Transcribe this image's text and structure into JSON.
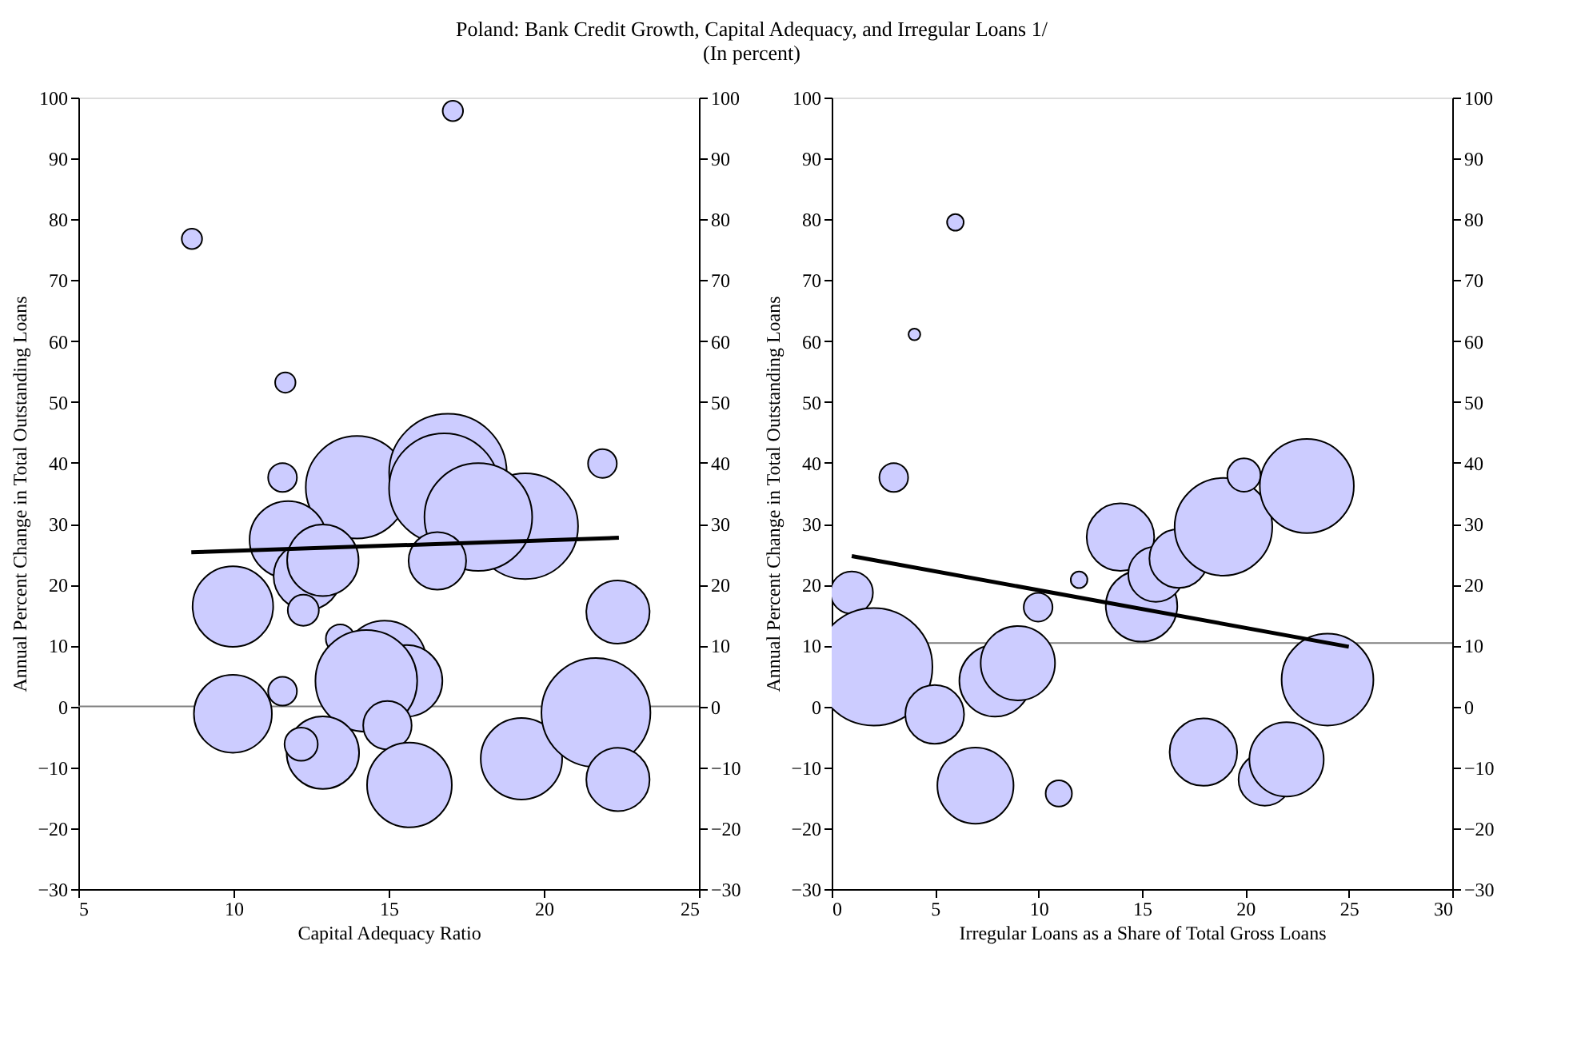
{
  "chart_data": [
    {
      "type": "bubble",
      "title": "Poland: Bank Credit Growth, Capital Adequacy, and Irregular Loans 1/",
      "subtitle": "(In percent)",
      "xlabel": "Capital Adequacy Ratio",
      "ylabel": "Annual Percent Change in Total Outstanding Loans",
      "xlim": [
        5,
        25
      ],
      "xticks": [
        5,
        10,
        15,
        20,
        25
      ],
      "ylim": [
        -30,
        100
      ],
      "yticks": [
        -30,
        -20,
        -10,
        0,
        10,
        20,
        30,
        40,
        50,
        60,
        70,
        80,
        90,
        100
      ],
      "y2lim": [
        -30,
        100
      ],
      "y2ticks": [
        -30,
        -20,
        -10,
        0,
        10,
        20,
        30,
        40,
        50,
        60,
        70,
        80,
        90,
        100
      ],
      "grid": false,
      "legend": false,
      "ref_lines": [
        {
          "axis": "y",
          "value": 0,
          "color": "#808080"
        }
      ],
      "series": [
        {
          "color": "#ccccff",
          "x": [
            17.07,
            8.66,
            11.67,
            11.58,
            21.89,
            13.98,
            16.91,
            16.79,
            19.4,
            17.89,
            11.76,
            12.38,
            12.88,
            12.25,
            16.57,
            9.98,
            22.39,
            13.44,
            14.87,
            15.58,
            14.28,
            14.96,
            11.58,
            9.98,
            12.88,
            12.18,
            15.67,
            19.28,
            21.68,
            22.39
          ],
          "values": [
            97.8,
            76.8,
            53.2,
            37.6,
            39.9,
            36.0,
            38.4,
            35.8,
            29.6,
            31.1,
            27.4,
            21.4,
            24.0,
            15.8,
            23.9,
            16.4,
            15.5,
            11.1,
            7.2,
            4.2,
            4.2,
            -3.1,
            2.5,
            -1.2,
            -7.6,
            -6.2,
            -12.9,
            -8.6,
            -1.0,
            -12.0
          ],
          "sizes": [
            0.03,
            0.03,
            0.03,
            0.06,
            0.06,
            0.76,
            1,
            0.88,
            0.81,
            0.84,
            0.43,
            0.33,
            0.37,
            0.07,
            0.24,
            0.47,
            0.29,
            0.06,
            0.51,
            0.37,
            0.75,
            0.17,
            0.06,
            0.44,
            0.38,
            0.08,
            0.52,
            0.48,
            0.86,
            0.29
          ]
        },
        {
          "type": "line",
          "color": "#000000",
          "x": [
            8.64,
            22.42
          ],
          "values": [
            25.3,
            27.7
          ]
        }
      ]
    },
    {
      "type": "bubble",
      "xlabel": "Irregular Loans as a Share of Total Gross Loans",
      "ylabel": "Annual Percent Change in Total Outstanding Loans",
      "xlim": [
        0,
        30
      ],
      "xticks": [
        0,
        5,
        10,
        15,
        20,
        25,
        30
      ],
      "ylim": [
        -30,
        100
      ],
      "yticks": [
        -30,
        -20,
        -10,
        0,
        10,
        20,
        30,
        40,
        50,
        60,
        70,
        80,
        90,
        100
      ],
      "y2lim": [
        -30,
        100
      ],
      "y2ticks": [
        -30,
        -20,
        -10,
        0,
        10,
        20,
        30,
        40,
        50,
        60,
        70,
        80,
        90,
        100
      ],
      "grid": false,
      "legend": false,
      "ref_lines": [
        {
          "axis": "y",
          "value": 10.4,
          "color": "#808080"
        }
      ],
      "series": [
        {
          "color": "#ccccff",
          "x": [
            5.98,
            4.0,
            3.0,
            0.97,
            2.03,
            4.98,
            7.9,
            9.0,
            9.98,
            6.95,
            10.98,
            11.96,
            13.96,
            14.98,
            15.67,
            16.78,
            18.94,
            19.93,
            22.97,
            23.97,
            17.97,
            20.94,
            21.99
          ],
          "values": [
            79.5,
            61.1,
            37.6,
            18.7,
            6.5,
            -1.3,
            4.2,
            7.1,
            16.3,
            -13.0,
            -14.3,
            20.8,
            27.8,
            16.5,
            21.7,
            24.3,
            29.5,
            38.0,
            36.2,
            4.4,
            -7.5,
            -12.0,
            -8.7
          ],
          "sizes": [
            0.02,
            0.01,
            0.06,
            0.13,
            1,
            0.25,
            0.37,
            0.4,
            0.06,
            0.42,
            0.05,
            0.02,
            0.33,
            0.37,
            0.22,
            0.25,
            0.69,
            0.08,
            0.64,
            0.61,
            0.33,
            0.2,
            0.4
          ]
        },
        {
          "type": "line",
          "color": "#000000",
          "x": [
            0.97,
            25.0
          ],
          "values": [
            24.7,
            9.8
          ]
        }
      ]
    }
  ]
}
